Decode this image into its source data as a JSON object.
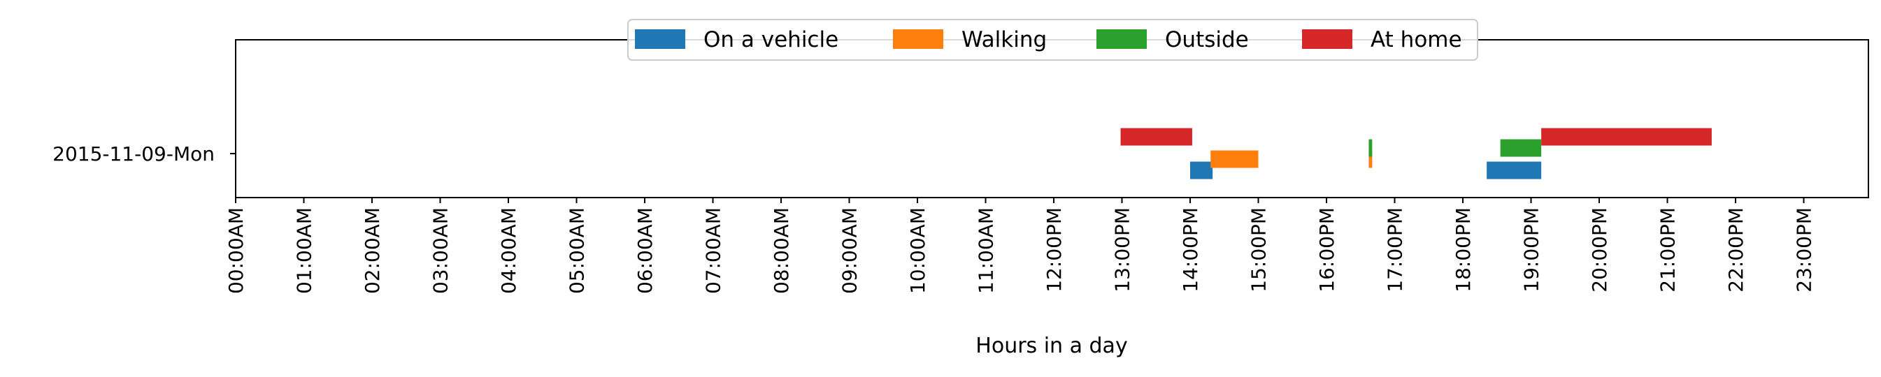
{
  "chart_data": {
    "type": "timeline",
    "xlabel": "Hours in a day",
    "xlim": [
      0,
      24
    ],
    "categories": [
      "2015-11-09-Mon"
    ],
    "x_ticks": [
      {
        "value": 0,
        "label": "00:00AM"
      },
      {
        "value": 1,
        "label": "01:00AM"
      },
      {
        "value": 2,
        "label": "02:00AM"
      },
      {
        "value": 3,
        "label": "03:00AM"
      },
      {
        "value": 4,
        "label": "04:00AM"
      },
      {
        "value": 5,
        "label": "05:00AM"
      },
      {
        "value": 6,
        "label": "06:00AM"
      },
      {
        "value": 7,
        "label": "07:00AM"
      },
      {
        "value": 8,
        "label": "08:00AM"
      },
      {
        "value": 9,
        "label": "09:00AM"
      },
      {
        "value": 10,
        "label": "10:00AM"
      },
      {
        "value": 11,
        "label": "11:00AM"
      },
      {
        "value": 12,
        "label": "12:00PM"
      },
      {
        "value": 13,
        "label": "13:00PM"
      },
      {
        "value": 14,
        "label": "14:00PM"
      },
      {
        "value": 15,
        "label": "15:00PM"
      },
      {
        "value": 16,
        "label": "16:00PM"
      },
      {
        "value": 17,
        "label": "17:00PM"
      },
      {
        "value": 18,
        "label": "18:00PM"
      },
      {
        "value": 19,
        "label": "19:00PM"
      },
      {
        "value": 20,
        "label": "20:00PM"
      },
      {
        "value": 21,
        "label": "21:00PM"
      },
      {
        "value": 22,
        "label": "22:00PM"
      },
      {
        "value": 23,
        "label": "23:00PM"
      }
    ],
    "legend_position": "top-center",
    "grid": false,
    "series": [
      {
        "name": "On a vehicle",
        "color": "#1f77b4",
        "intervals": [
          [
            14.0,
            14.33
          ],
          [
            18.35,
            19.15
          ]
        ]
      },
      {
        "name": "Walking",
        "color": "#ff7f0e",
        "intervals": [
          [
            14.3,
            15.0
          ],
          [
            16.62,
            16.67
          ]
        ]
      },
      {
        "name": "Outside",
        "color": "#2ca02c",
        "intervals": [
          [
            16.62,
            16.67
          ],
          [
            18.55,
            19.15
          ]
        ]
      },
      {
        "name": "At home",
        "color": "#d62728",
        "intervals": [
          [
            12.98,
            14.03
          ],
          [
            19.15,
            21.65
          ]
        ]
      }
    ]
  }
}
